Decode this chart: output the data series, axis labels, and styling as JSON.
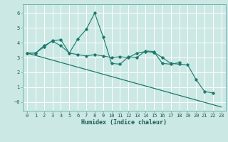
{
  "xlabel": "Humidex (Indice chaleur)",
  "background_color": "#cce8e4",
  "grid_color": "#ffffff",
  "line_color": "#1a7a6e",
  "xlim": [
    -0.5,
    23.5
  ],
  "ylim": [
    -0.6,
    6.6
  ],
  "yticks": [
    0,
    1,
    2,
    3,
    4,
    5,
    6
  ],
  "ytick_labels": [
    "−0",
    "1",
    "2",
    "3",
    "4",
    "5",
    "6"
  ],
  "xticks": [
    0,
    1,
    2,
    3,
    4,
    5,
    6,
    7,
    8,
    9,
    10,
    11,
    12,
    13,
    14,
    15,
    16,
    17,
    18,
    19,
    20,
    21,
    22,
    23
  ],
  "series1_x": [
    0,
    1,
    2,
    3,
    4,
    5,
    6,
    7,
    8,
    9,
    10,
    11,
    12,
    13,
    14,
    15,
    16,
    17,
    18,
    19,
    20,
    21,
    22
  ],
  "series1_y": [
    3.3,
    3.3,
    3.8,
    4.1,
    3.8,
    3.3,
    3.2,
    3.1,
    3.2,
    3.1,
    3.0,
    3.05,
    3.0,
    3.3,
    3.4,
    3.35,
    3.0,
    2.6,
    2.55,
    2.5,
    1.5,
    0.7,
    0.6
  ],
  "series2_x": [
    0,
    1,
    2,
    3,
    4,
    5,
    6,
    7,
    8,
    9,
    10,
    11,
    12,
    13,
    14,
    15,
    16,
    17,
    18
  ],
  "series2_y": [
    3.3,
    3.3,
    3.7,
    4.15,
    4.2,
    3.3,
    4.25,
    4.9,
    6.0,
    4.4,
    2.6,
    2.55,
    3.05,
    3.0,
    3.45,
    3.4,
    2.6,
    2.55,
    2.65
  ],
  "series3_x": [
    0,
    23
  ],
  "series3_y": [
    3.3,
    -0.35
  ],
  "tick_fontsize": 5.0,
  "xlabel_fontsize": 6.0
}
